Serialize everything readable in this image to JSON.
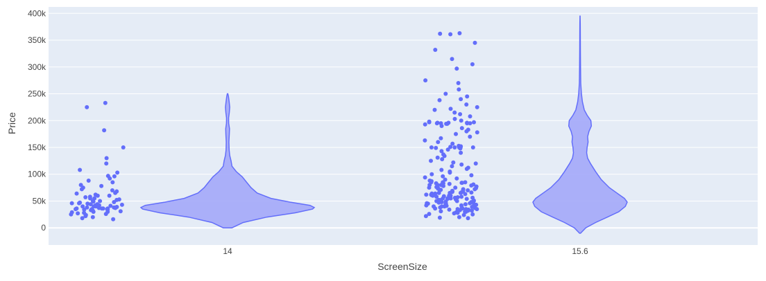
{
  "chart_data": {
    "type": "violin",
    "title": "",
    "xlabel": "ScreenSize",
    "ylabel": "Price",
    "categories": [
      "14",
      "15.6"
    ],
    "ylim": [
      -32000,
      412000
    ],
    "y_ticks": [
      0,
      50000,
      100000,
      150000,
      200000,
      250000,
      300000,
      350000,
      400000
    ],
    "y_tick_labels": [
      "0",
      "50k",
      "100k",
      "150k",
      "200k",
      "250k",
      "300k",
      "350k",
      "400k"
    ],
    "grid": true,
    "legend": "none",
    "colors": {
      "plot_bg": "#e5ecf6",
      "grid": "#ffffff",
      "marker": "#636efa",
      "violin_fill": "#a3a8f9",
      "violin_line": "#636efa"
    },
    "violins": [
      {
        "category": "14",
        "min": 0,
        "max": 250000,
        "density": [
          [
            0,
            0.05
          ],
          [
            10000,
            0.18
          ],
          [
            20000,
            0.45
          ],
          [
            28000,
            0.78
          ],
          [
            35000,
            0.98
          ],
          [
            38000,
            1.0
          ],
          [
            42000,
            0.95
          ],
          [
            48000,
            0.72
          ],
          [
            55000,
            0.5
          ],
          [
            65000,
            0.34
          ],
          [
            75000,
            0.27
          ],
          [
            85000,
            0.22
          ],
          [
            95000,
            0.17
          ],
          [
            105000,
            0.1
          ],
          [
            115000,
            0.05
          ],
          [
            125000,
            0.04
          ],
          [
            135000,
            0.025
          ],
          [
            145000,
            0.018
          ],
          [
            160000,
            0.015
          ],
          [
            175000,
            0.02
          ],
          [
            185000,
            0.022
          ],
          [
            195000,
            0.013
          ],
          [
            205000,
            0.012
          ],
          [
            215000,
            0.02
          ],
          [
            225000,
            0.025
          ],
          [
            235000,
            0.018
          ],
          [
            245000,
            0.01
          ],
          [
            250000,
            0.003
          ]
        ]
      },
      {
        "category": "15.6",
        "min": -10000,
        "max": 395000,
        "density": [
          [
            -10000,
            0.01
          ],
          [
            0,
            0.12
          ],
          [
            10000,
            0.33
          ],
          [
            20000,
            0.58
          ],
          [
            30000,
            0.82
          ],
          [
            40000,
            0.96
          ],
          [
            48000,
            1.0
          ],
          [
            55000,
            0.94
          ],
          [
            65000,
            0.78
          ],
          [
            75000,
            0.62
          ],
          [
            90000,
            0.45
          ],
          [
            105000,
            0.33
          ],
          [
            120000,
            0.22
          ],
          [
            130000,
            0.16
          ],
          [
            140000,
            0.14
          ],
          [
            150000,
            0.15
          ],
          [
            160000,
            0.17
          ],
          [
            170000,
            0.16
          ],
          [
            180000,
            0.19
          ],
          [
            190000,
            0.24
          ],
          [
            200000,
            0.23
          ],
          [
            210000,
            0.15
          ],
          [
            220000,
            0.09
          ],
          [
            235000,
            0.05
          ],
          [
            250000,
            0.03
          ],
          [
            270000,
            0.015
          ],
          [
            300000,
            0.01
          ],
          [
            330000,
            0.008
          ],
          [
            360000,
            0.006
          ],
          [
            380000,
            0.004
          ],
          [
            395000,
            0.001
          ]
        ]
      }
    ],
    "points": [
      {
        "category": "14",
        "values": [
          233000,
          225000,
          182000,
          150000,
          130000,
          120000,
          108000,
          103000,
          97000,
          96000,
          92000,
          88000,
          85000,
          80000,
          78000,
          75000,
          72000,
          70000,
          68000,
          65000,
          64000,
          62000,
          60000,
          58000,
          57000,
          55000,
          53000,
          52000,
          50000,
          49000,
          48000,
          47000,
          46000,
          45000,
          44000,
          44000,
          43000,
          42000,
          41000,
          40000,
          40000,
          39000,
          38000,
          38000,
          37000,
          37000,
          36000,
          36000,
          36000,
          35000,
          35000,
          35000,
          34000,
          34000,
          33000,
          33000,
          32000,
          31000,
          30000,
          29000,
          28000,
          27000,
          26000,
          25000,
          24000,
          22000,
          20000,
          18000,
          16000,
          40000,
          42000,
          38000,
          36000,
          30000,
          46000,
          50000,
          55000,
          60000
        ]
      },
      {
        "category": "15.6",
        "values": [
          363000,
          362000,
          361000,
          345000,
          332000,
          315000,
          305000,
          297000,
          275000,
          270000,
          258000,
          250000,
          245000,
          240000,
          238000,
          230000,
          225000,
          222000,
          220000,
          215000,
          212000,
          208000,
          203000,
          200000,
          198000,
          197000,
          197000,
          196000,
          196000,
          196000,
          195000,
          195000,
          195000,
          195000,
          194000,
          194000,
          193000,
          190000,
          186000,
          183000,
          180000,
          178000,
          175000,
          170000,
          167000,
          163000,
          160000,
          157000,
          153000,
          152000,
          151000,
          151000,
          150000,
          150000,
          150000,
          150000,
          150000,
          149000,
          148000,
          146000,
          143000,
          140000,
          137000,
          134000,
          131000,
          128000,
          125000,
          122000,
          120000,
          118000,
          115000,
          112000,
          110000,
          108000,
          105000,
          103000,
          100000,
          98000,
          96000,
          94000,
          92000,
          90000,
          88000,
          87000,
          86000,
          85000,
          85000,
          84000,
          84000,
          83000,
          83000,
          82000,
          81000,
          80000,
          80000,
          79000,
          78000,
          77000,
          76000,
          75000,
          75000,
          74000,
          73000,
          72000,
          71000,
          70000,
          70000,
          69000,
          68000,
          67000,
          66000,
          65000,
          65000,
          64000,
          63000,
          62000,
          61000,
          60000,
          60000,
          59000,
          58000,
          57000,
          56000,
          55000,
          55000,
          54000,
          53000,
          52000,
          51000,
          50000,
          50000,
          49000,
          48000,
          47000,
          46000,
          45000,
          45000,
          44000,
          43000,
          42000,
          41000,
          40000,
          40000,
          39000,
          38000,
          37000,
          36000,
          35000,
          35000,
          34000,
          33000,
          32000,
          31000,
          30000,
          29000,
          28000,
          27000,
          26000,
          25000,
          24000,
          22000,
          20000,
          19000,
          18000,
          70000,
          72000,
          68000,
          66000,
          64000,
          62000,
          58000,
          56000,
          54000,
          52000,
          48000,
          46000,
          44000,
          42000,
          38000,
          36000,
          34000,
          32000,
          30000,
          50000,
          60000,
          75000,
          80000,
          85000,
          65000,
          55000,
          45000,
          40000,
          35000
        ]
      }
    ]
  }
}
